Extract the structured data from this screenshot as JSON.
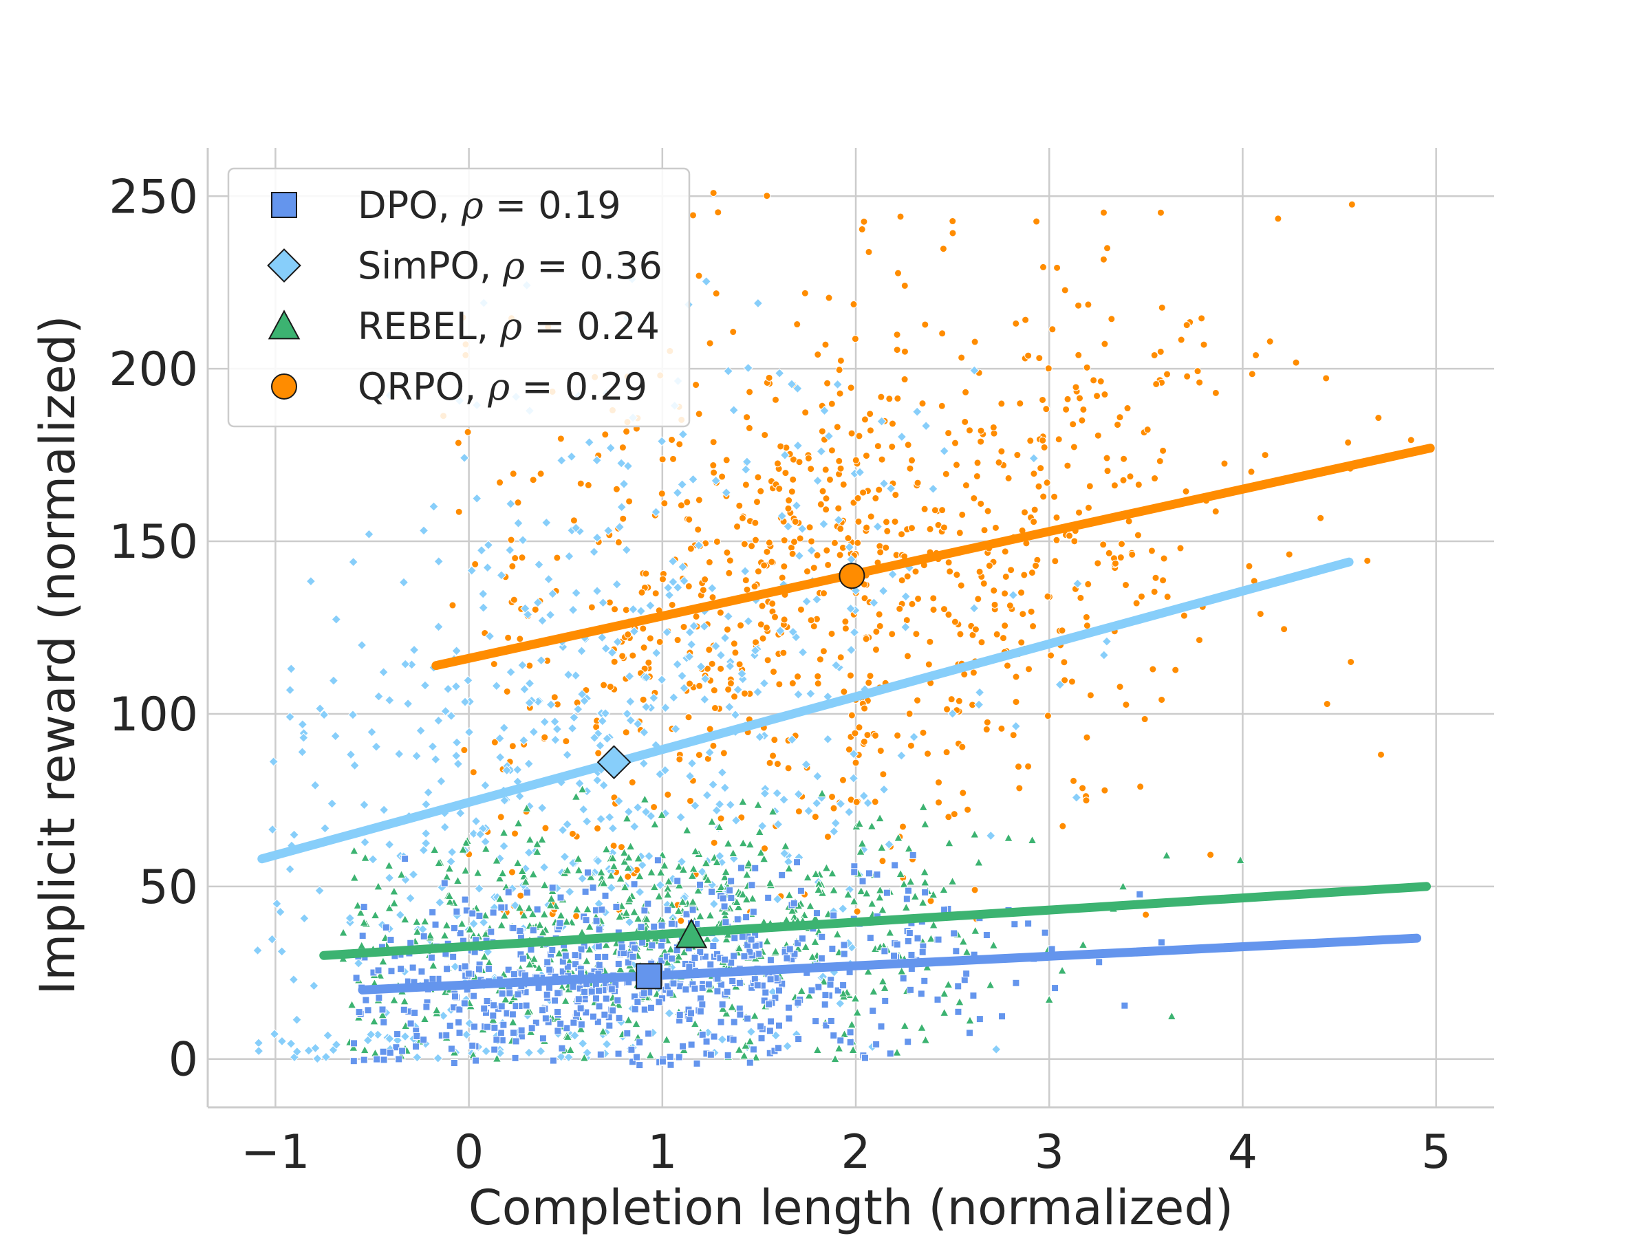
{
  "chart_data": {
    "type": "scatter",
    "title": "",
    "xlabel": "Completion length (normalized)",
    "ylabel": "Implicit reward (normalized)",
    "xlim": [
      -1.35,
      5.3
    ],
    "ylim": [
      -14,
      264
    ],
    "xticks": [
      -1,
      0,
      1,
      2,
      3,
      4,
      5
    ],
    "xtick_labels": [
      "−1",
      "0",
      "1",
      "2",
      "3",
      "4",
      "5"
    ],
    "yticks": [
      0,
      50,
      100,
      150,
      200,
      250
    ],
    "ytick_labels": [
      "0",
      "50",
      "100",
      "150",
      "200",
      "250"
    ],
    "grid": true,
    "legend_position": "top-left",
    "series": [
      {
        "name": "DPO",
        "rho": "0.19",
        "marker": "square",
        "color": "#6495ED",
        "fit_line": {
          "x": [
            -0.55,
            4.9
          ],
          "y": [
            20,
            35
          ]
        },
        "mean_point": {
          "x": 0.93,
          "y": 24
        },
        "cloud": {
          "x_mean": 0.7,
          "x_std": 0.95,
          "x_min": -0.6,
          "x_max": 4.95,
          "y_at_xmin": 20,
          "slope": 2.75,
          "y_noise": 13,
          "y_min": -2,
          "y_max": 60,
          "count": 650
        }
      },
      {
        "name": "SimPO",
        "rho": "0.36",
        "marker": "diamond",
        "color": "#87CEFA",
        "fit_line": {
          "x": [
            -1.07,
            4.55
          ],
          "y": [
            58,
            144
          ]
        },
        "mean_point": {
          "x": 0.75,
          "y": 86
        },
        "cloud": {
          "x_mean": 0.65,
          "x_std": 1.0,
          "x_min": -1.1,
          "x_max": 4.6,
          "y_at_xmin": 58,
          "slope": 15.3,
          "y_noise": 55,
          "y_min": 0,
          "y_max": 228,
          "count": 650
        }
      },
      {
        "name": "REBEL",
        "rho": "0.24",
        "marker": "triangle",
        "color": "#3CB371",
        "fit_line": {
          "x": [
            -0.75,
            4.95
          ],
          "y": [
            30,
            50
          ]
        },
        "mean_point": {
          "x": 1.15,
          "y": 36
        },
        "cloud": {
          "x_mean": 0.9,
          "x_std": 0.95,
          "x_min": -0.65,
          "x_max": 4.95,
          "y_at_xmin": 30,
          "slope": 3.5,
          "y_noise": 18,
          "y_min": 0,
          "y_max": 80,
          "count": 650
        }
      },
      {
        "name": "QRPO",
        "rho": "0.29",
        "marker": "circle",
        "color": "#FF8C00",
        "fit_line": {
          "x": [
            -0.17,
            4.97
          ],
          "y": [
            114,
            177
          ]
        },
        "mean_point": {
          "x": 1.98,
          "y": 140
        },
        "cloud": {
          "x_mean": 2.0,
          "x_std": 1.1,
          "x_min": -0.2,
          "x_max": 5.0,
          "y_at_xmin": 114,
          "slope": 12.25,
          "y_noise": 42,
          "y_min": 40,
          "y_max": 252,
          "count": 900
        }
      }
    ]
  }
}
